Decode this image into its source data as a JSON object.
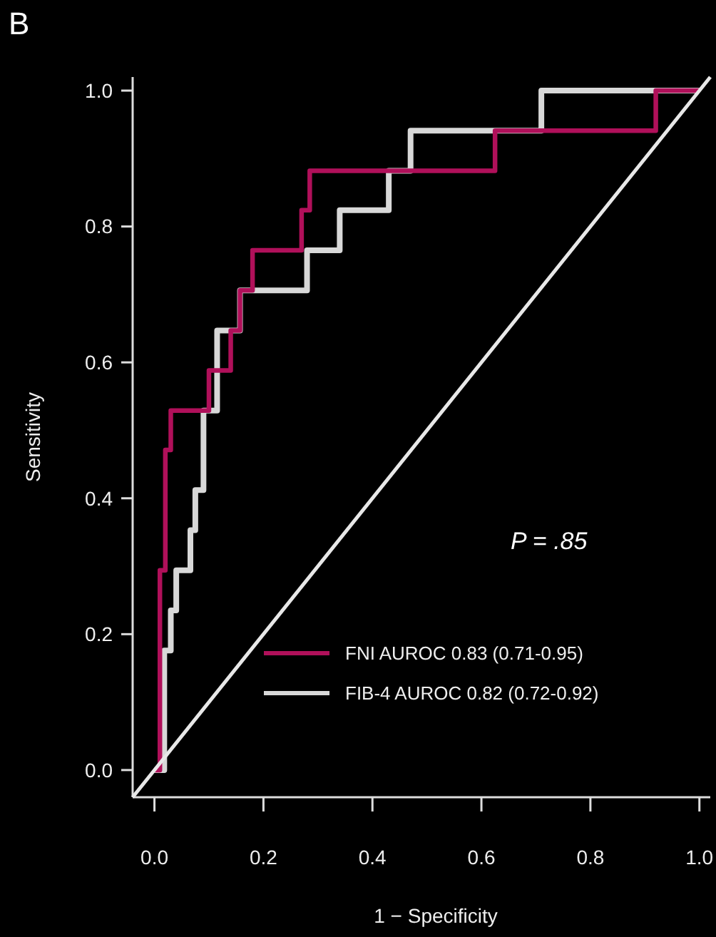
{
  "chart_data": {
    "type": "line",
    "title": "B",
    "xlabel": "1 − Specificity",
    "ylabel": "Sensitivity",
    "xlim": [
      -0.04,
      1.02
    ],
    "ylim": [
      -0.04,
      1.02
    ],
    "xticks": [
      {
        "value": 0,
        "label": "0.0"
      },
      {
        "value": 0.2,
        "label": "0.2"
      },
      {
        "value": 0.4,
        "label": "0.4"
      },
      {
        "value": 0.6,
        "label": "0.6"
      },
      {
        "value": 0.8,
        "label": "0.8"
      },
      {
        "value": 1,
        "label": "1.0"
      }
    ],
    "yticks": [
      {
        "value": 0,
        "label": "0.0"
      },
      {
        "value": 0.2,
        "label": "0.2"
      },
      {
        "value": 0.4,
        "label": "0.4"
      },
      {
        "value": 0.6,
        "label": "0.6"
      },
      {
        "value": 0.8,
        "label": "0.8"
      },
      {
        "value": 1,
        "label": "1.0"
      }
    ],
    "legend": "bottom right",
    "grid": false,
    "line_style": "solid",
    "annotations": [
      "P  = .85"
    ],
    "series": [
      {
        "name": "FIB-4 AUROC 0.82 (0.72-0.92)",
        "color": "#d8d8d8",
        "x": [
          0,
          0.018,
          0.018,
          0.03,
          0.03,
          0.04,
          0.04,
          0.066,
          0.066,
          0.075,
          0.075,
          0.09,
          0.09,
          0.115,
          0.115,
          0.157,
          0.157,
          0.28,
          0.28,
          0.34,
          0.34,
          0.43,
          0.43,
          0.47,
          0.47,
          0.71,
          0.71,
          1
        ],
        "values": [
          0,
          0,
          0.176,
          0.176,
          0.235,
          0.235,
          0.294,
          0.294,
          0.353,
          0.353,
          0.412,
          0.412,
          0.529,
          0.529,
          0.647,
          0.647,
          0.706,
          0.706,
          0.765,
          0.765,
          0.824,
          0.824,
          0.882,
          0.882,
          0.941,
          0.941,
          1,
          1
        ]
      },
      {
        "name": "FNI AUROC 0.83 (0.71-0.95)",
        "color": "#b0105a",
        "x": [
          0,
          0.01,
          0.01,
          0.02,
          0.02,
          0.03,
          0.03,
          0.1,
          0.1,
          0.14,
          0.14,
          0.157,
          0.157,
          0.18,
          0.18,
          0.27,
          0.27,
          0.285,
          0.285,
          0.625,
          0.625,
          0.92,
          0.92,
          1
        ],
        "values": [
          0,
          0,
          0.294,
          0.294,
          0.471,
          0.471,
          0.529,
          0.529,
          0.588,
          0.588,
          0.647,
          0.647,
          0.706,
          0.706,
          0.765,
          0.765,
          0.824,
          0.824,
          0.882,
          0.882,
          0.941,
          0.941,
          1,
          1
        ]
      },
      {
        "color": "#e8e8e8",
        "x": [
          -0.04,
          1.02
        ],
        "values": [
          -0.04,
          1.02
        ]
      }
    ]
  }
}
